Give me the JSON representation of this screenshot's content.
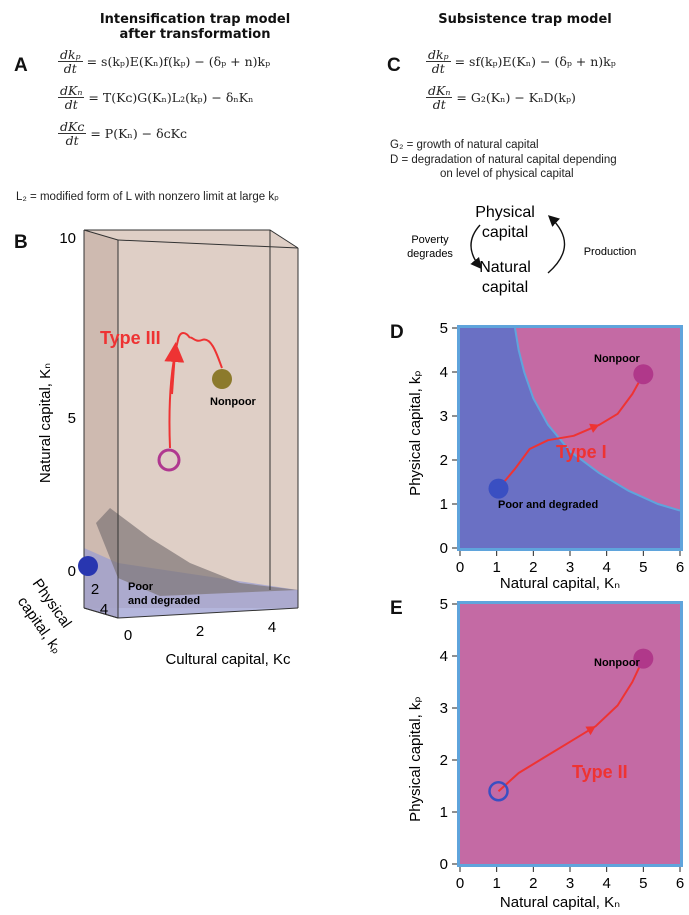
{
  "left": {
    "heading_line1": "Intensification trap model",
    "heading_line2": "after transformation",
    "panel_A": "A",
    "equations": [
      {
        "num": "dkₚ",
        "den": "dt",
        "rhs": "= s(kₚ)E(Kₙ)f(kₚ) − (δₚ + n)kₚ"
      },
      {
        "num": "dKₙ",
        "den": "dt",
        "rhs": "= T(Kᴄ)G(Kₙ)L₂(kₚ) − δₙKₙ"
      },
      {
        "num": "dKᴄ",
        "den": "dt",
        "rhs": "= P(Kₙ) − δᴄKᴄ"
      }
    ],
    "note": "L₂ = modified form of L with nonzero limit at large kₚ",
    "panel_B": "B"
  },
  "right": {
    "heading": "Subsistence trap model",
    "panel_C": "C",
    "equations": [
      {
        "num": "dkₚ",
        "den": "dt",
        "rhs": "= sf(kₚ)E(Kₙ) − (δₚ + n)kₚ"
      },
      {
        "num": "dKₙ",
        "den": "dt",
        "rhs": "= G₂(Kₙ) − KₙD(kₚ)"
      }
    ],
    "note1": "G₂ = growth of natural capital",
    "note2": "D = degradation of natural capital depending",
    "note3": "on level of physical capital",
    "cycle": {
      "top1": "Physical",
      "top2": "capital",
      "bottom1": "Natural",
      "bottom2": "capital",
      "left1": "Poverty",
      "left2": "degrades",
      "right": "Production"
    },
    "panel_D": "D",
    "panel_E": "E"
  },
  "plot3d": {
    "z_ticks": [
      "10",
      "5",
      "0"
    ],
    "kc_ticks": [
      "0",
      "2",
      "4"
    ],
    "kp_ticks": [
      "2",
      "4"
    ],
    "zlabel": "Natural capital, Kₙ",
    "xlabel": "Cultural capital, Kᴄ",
    "ylabel1": "Physical",
    "ylabel2": "capital, kₚ",
    "type_label": "Type III",
    "nonpoor": "Nonpoor",
    "poor1": "Poor",
    "poor2": "and degraded"
  },
  "chart_data": [
    {
      "type": "scatter",
      "panel": "D",
      "xlabel": "Natural capital, Kₙ",
      "ylabel": "Physical capital, kₚ",
      "xlim": [
        0,
        6
      ],
      "ylim": [
        0,
        5
      ],
      "x_ticks": [
        0,
        1,
        2,
        3,
        4,
        5,
        6
      ],
      "y_ticks": [
        0,
        1,
        2,
        3,
        4,
        5
      ],
      "points": [
        {
          "label": "Poor and degraded",
          "x": 1.05,
          "y": 1.35,
          "style": "filled",
          "color": "#3a4fc2"
        },
        {
          "label": "Nonpoor",
          "x": 5.0,
          "y": 3.95,
          "style": "filled",
          "color": "#b0388a"
        }
      ],
      "annotation": "Type I",
      "trajectory": [
        [
          1.05,
          1.35
        ],
        [
          1.5,
          1.8
        ],
        [
          1.9,
          2.25
        ],
        [
          2.4,
          2.45
        ],
        [
          3.1,
          2.55
        ],
        [
          3.8,
          2.8
        ],
        [
          4.3,
          3.05
        ],
        [
          4.7,
          3.5
        ],
        [
          5.0,
          3.95
        ]
      ],
      "separatrix": [
        [
          1.5,
          5.0
        ],
        [
          1.6,
          4.5
        ],
        [
          1.75,
          4.0
        ],
        [
          2.0,
          3.4
        ],
        [
          2.4,
          2.8
        ],
        [
          3.0,
          2.2
        ],
        [
          3.8,
          1.7
        ],
        [
          4.6,
          1.3
        ],
        [
          5.4,
          1.0
        ],
        [
          6.0,
          0.85
        ]
      ],
      "colors": {
        "poor_region": "#6a70c4",
        "nonpoor_region": "#c46aa4",
        "border": "#5fa4dc"
      }
    },
    {
      "type": "scatter",
      "panel": "E",
      "xlabel": "Natural capital, Kₙ",
      "ylabel": "Physical capital, kₚ",
      "xlim": [
        0,
        6
      ],
      "ylim": [
        0,
        5
      ],
      "x_ticks": [
        0,
        1,
        2,
        3,
        4,
        5,
        6
      ],
      "y_ticks": [
        0,
        1,
        2,
        3,
        4,
        5
      ],
      "points": [
        {
          "label": "",
          "x": 1.05,
          "y": 1.4,
          "style": "open",
          "color": "#3a4fc2"
        },
        {
          "label": "Nonpoor",
          "x": 5.0,
          "y": 3.95,
          "style": "filled",
          "color": "#b0388a"
        }
      ],
      "annotation": "Type II",
      "trajectory": [
        [
          1.05,
          1.4
        ],
        [
          1.6,
          1.75
        ],
        [
          2.3,
          2.05
        ],
        [
          3.0,
          2.35
        ],
        [
          3.7,
          2.65
        ],
        [
          4.3,
          3.05
        ],
        [
          4.7,
          3.5
        ],
        [
          5.0,
          3.95
        ]
      ],
      "colors": {
        "region": "#c46aa4",
        "border": "#5fa4dc"
      }
    }
  ]
}
